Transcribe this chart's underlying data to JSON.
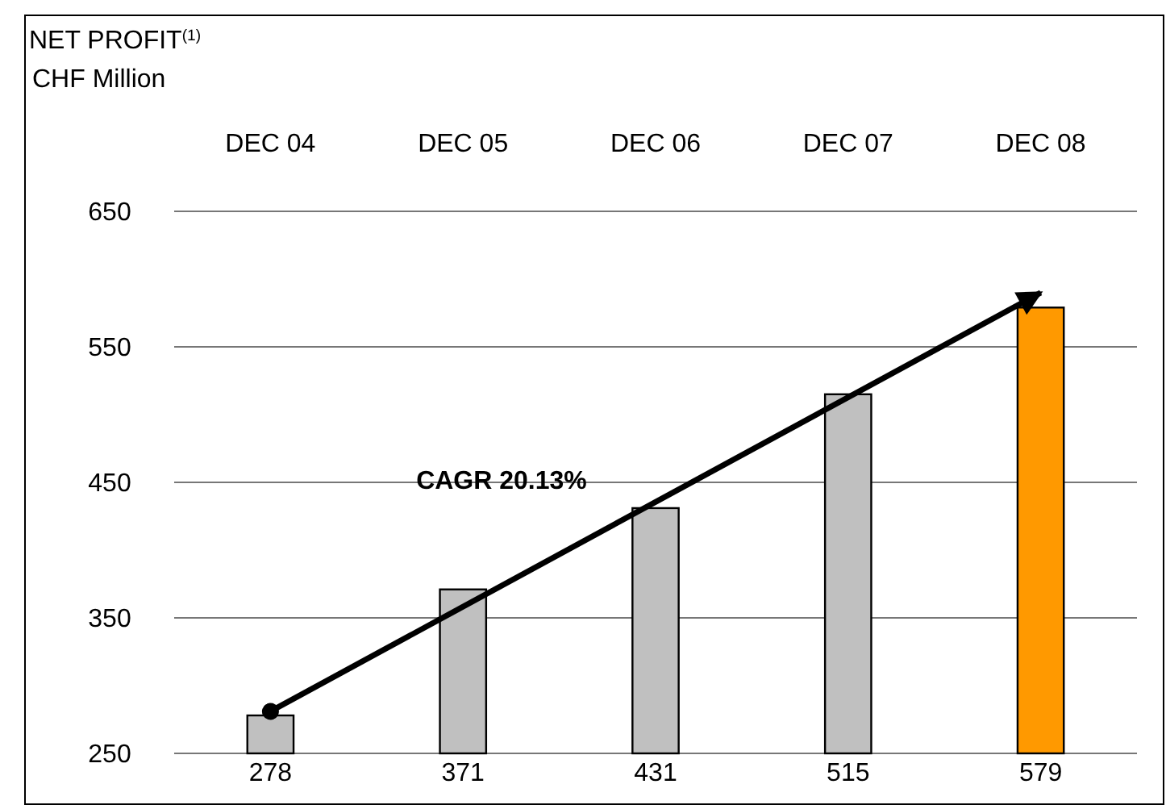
{
  "chart_data": {
    "type": "bar",
    "title": "NET PROFIT$^{(1)}$",
    "subtitle": "CHF Million",
    "categories": [
      "DEC 04",
      "DEC 05",
      "DEC 06",
      "DEC 07",
      "DEC 08"
    ],
    "series": [
      {
        "values": [
          278,
          371,
          431,
          515,
          579
        ],
        "value_labels": [
          "278",
          "371",
          "431",
          "515",
          "579"
        ],
        "colors": [
          "#c0c0c0",
          "#c0c0c0",
          "#c0c0c0",
          "#c0c0c0",
          "#ff9900"
        ]
      },
      {
        "type": "line",
        "x": [
          "DEC 04",
          "DEC 08"
        ],
        "values": [
          281,
          590
        ],
        "color": "#000000"
      }
    ],
    "ylim": [
      250,
      650
    ],
    "yticks": [
      250,
      350,
      450,
      550,
      650
    ],
    "grid": "y",
    "annotations": [
      "CAGR 20.13%"
    ]
  }
}
